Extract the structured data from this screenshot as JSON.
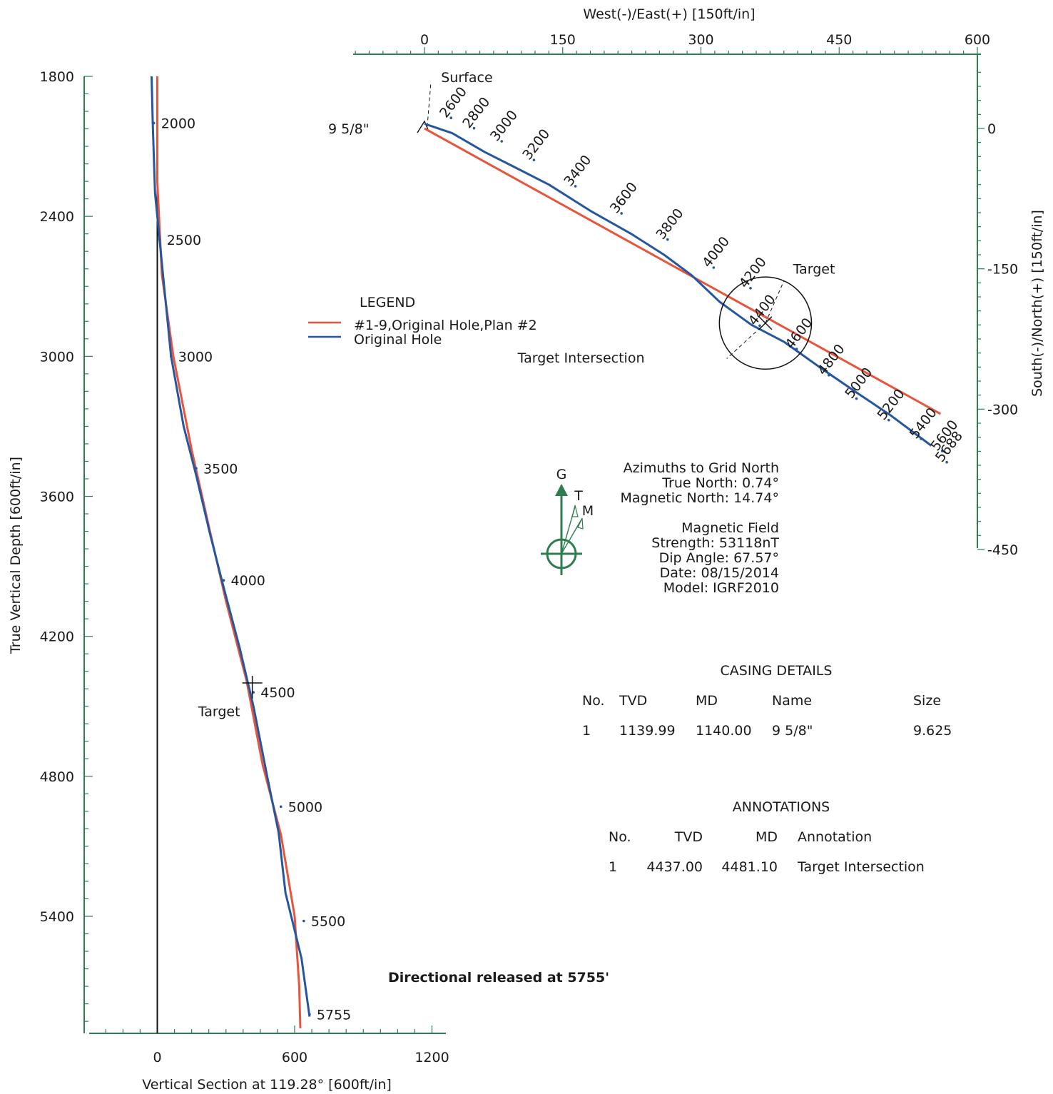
{
  "chart_data": [
    {
      "type": "line",
      "name": "vertical-section",
      "xlabel": "Vertical Section at 119.28° [600ft/in]",
      "ylabel": "True Vertical Depth [600ft/in]",
      "xlim": [
        -300,
        1250
      ],
      "ylim": [
        1800,
        5900
      ],
      "xticks": [
        "0",
        "600",
        "1200"
      ],
      "yticks": [
        "1800",
        "2400",
        "3000",
        "3600",
        "4200",
        "4800",
        "5400"
      ],
      "series": [
        {
          "name": "#1-9,Original Hole,Plan #2",
          "color": "#e8553c",
          "points": [
            [
              0,
              1800
            ],
            [
              0,
              2250
            ],
            [
              20,
              2650
            ],
            [
              70,
              3000
            ],
            [
              150,
              3400
            ],
            [
              230,
              3750
            ],
            [
              300,
              4050
            ],
            [
              390,
              4390
            ],
            [
              460,
              4750
            ],
            [
              540,
              5050
            ],
            [
              600,
              5400
            ],
            [
              620,
              5700
            ],
            [
              625,
              5880
            ]
          ]
        },
        {
          "name": "Original Hole",
          "color": "#24579f",
          "points": [
            [
              -25,
              1800
            ],
            [
              -20,
              2000
            ],
            [
              -10,
              2300
            ],
            [
              10,
              2500
            ],
            [
              35,
              2750
            ],
            [
              60,
              3000
            ],
            [
              115,
              3300
            ],
            [
              170,
              3510
            ],
            [
              230,
              3760
            ],
            [
              290,
              3990
            ],
            [
              360,
              4250
            ],
            [
              420,
              4500
            ],
            [
              480,
              4800
            ],
            [
              530,
              5040
            ],
            [
              560,
              5300
            ],
            [
              630,
              5580
            ],
            [
              665,
              5830
            ]
          ]
        }
      ],
      "md_labels": [
        {
          "text": "2000",
          "x": -15,
          "y": 2000
        },
        {
          "text": "2500",
          "x": 10,
          "y": 2500
        },
        {
          "text": "3000",
          "x": 60,
          "y": 3000
        },
        {
          "text": "3500",
          "x": 170,
          "y": 3480
        },
        {
          "text": "4000",
          "x": 290,
          "y": 3960
        },
        {
          "text": "4500",
          "x": 420,
          "y": 4440
        },
        {
          "text": "5000",
          "x": 540,
          "y": 4930
        },
        {
          "text": "5500",
          "x": 640,
          "y": 5420
        },
        {
          "text": "5755",
          "x": 665,
          "y": 5820
        }
      ],
      "annotations": [
        {
          "text": "Target",
          "x": 270,
          "y": 4520
        }
      ]
    },
    {
      "type": "line",
      "name": "plan-view",
      "xlabel": "West(-)/East(+) [150ft/in]",
      "ylabel": "South(-)/North(+) [150ft/in]",
      "xlim": [
        -75,
        605
      ],
      "ylim": [
        -450,
        65
      ],
      "xticks": [
        "0",
        "150",
        "300",
        "450",
        "600"
      ],
      "yticks": [
        "0",
        "-150",
        "-300",
        "-450"
      ],
      "series": [
        {
          "name": "#1-9,Original Hole,Plan #2",
          "color": "#e8553c",
          "points": [
            [
              0,
              0
            ],
            [
              560,
              -305
            ]
          ]
        },
        {
          "name": "Original Hole",
          "color": "#24579f",
          "points": [
            [
              0,
              5
            ],
            [
              30,
              -5
            ],
            [
              65,
              -25
            ],
            [
              95,
              -40
            ],
            [
              135,
              -60
            ],
            [
              180,
              -88
            ],
            [
              225,
              -113
            ],
            [
              260,
              -135
            ],
            [
              290,
              -157
            ],
            [
              320,
              -185
            ],
            [
              355,
              -210
            ],
            [
              390,
              -228
            ],
            [
              430,
              -256
            ],
            [
              470,
              -283
            ],
            [
              505,
              -306
            ],
            [
              550,
              -339
            ]
          ]
        }
      ],
      "md_labels": [
        {
          "text": "2600",
          "x": 35,
          "y": 25
        },
        {
          "text": "2800",
          "x": 60,
          "y": 14
        },
        {
          "text": "3000",
          "x": 90,
          "y": 0
        },
        {
          "text": "3200",
          "x": 125,
          "y": -20
        },
        {
          "text": "3400",
          "x": 170,
          "y": -48
        },
        {
          "text": "3600",
          "x": 220,
          "y": -77
        },
        {
          "text": "3800",
          "x": 270,
          "y": -105
        },
        {
          "text": "4000",
          "x": 320,
          "y": -135
        },
        {
          "text": "4200",
          "x": 360,
          "y": -157
        },
        {
          "text": "4400",
          "x": 370,
          "y": -197
        },
        {
          "text": "4600",
          "x": 410,
          "y": -222
        },
        {
          "text": "4800",
          "x": 445,
          "y": -250
        },
        {
          "text": "5000",
          "x": 475,
          "y": -275
        },
        {
          "text": "5200",
          "x": 510,
          "y": -298
        },
        {
          "text": "5400",
          "x": 545,
          "y": -318
        },
        {
          "text": "5600",
          "x": 568,
          "y": -331
        },
        {
          "text": "5688",
          "x": 573,
          "y": -343
        }
      ],
      "annotations": [
        {
          "text": "Surface",
          "x": 18,
          "y": 55
        },
        {
          "text": "9 5/8\"",
          "x": -60,
          "y": 0
        },
        {
          "text": "Target",
          "x": 400,
          "y": -150
        },
        {
          "text": "Target Intersection",
          "x": 170,
          "y": -245
        }
      ],
      "target": {
        "x": 370,
        "y": -208,
        "radius": 50
      }
    }
  ],
  "legend": {
    "title": "LEGEND",
    "items": [
      {
        "label": "#1-9,Original Hole,Plan #2",
        "color": "#e8553c"
      },
      {
        "label": "Original Hole",
        "color": "#24579f"
      }
    ]
  },
  "compass": {
    "labels": [
      "G",
      "T",
      "M"
    ],
    "color": "#2e7d4f"
  },
  "azimuths": {
    "title": "Azimuths to Grid North",
    "true_north": "True North: 0.74°",
    "magnetic_north": "Magnetic North: 14.74°"
  },
  "magnetic_field": {
    "title": "Magnetic Field",
    "strength": "Strength: 53118nT",
    "dip": "Dip Angle: 67.57°",
    "date": "Date: 08/15/2014",
    "model": "Model: IGRF2010"
  },
  "casing": {
    "title": "CASING DETAILS",
    "headers": [
      "No.",
      "TVD",
      "MD",
      "Name",
      "Size"
    ],
    "rows": [
      [
        "1",
        "1139.99",
        "1140.00",
        "9 5/8\"",
        "9.625"
      ]
    ]
  },
  "annotations_table": {
    "title": "ANNOTATIONS",
    "headers": [
      "No.",
      "TVD",
      "MD",
      "Annotation"
    ],
    "rows": [
      [
        "1",
        "4437.00",
        "4481.10",
        "Target Intersection"
      ]
    ]
  },
  "release_note": "Directional released at 5755'"
}
